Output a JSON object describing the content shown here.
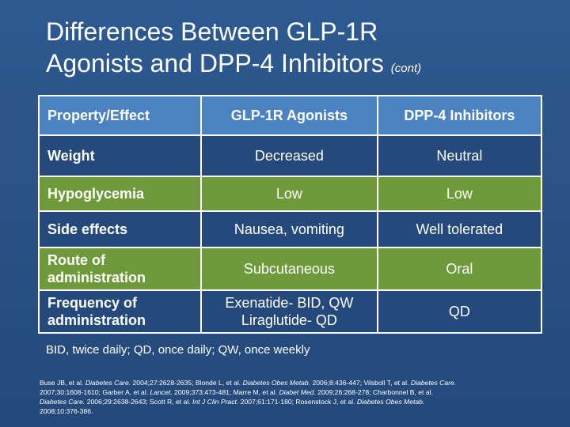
{
  "slide": {
    "title_line1": "Differences Between GLP-1R",
    "title_line2": "Agonists and DPP-4 Inhibitors",
    "title_suffix": "(cont)"
  },
  "table": {
    "headers": [
      "Property/Effect",
      "GLP-1R Agonists",
      "DPP-4 Inhibitors"
    ],
    "rows": [
      {
        "property": "Weight",
        "glp1": "Decreased",
        "dpp4": "Neutral"
      },
      {
        "property": "Hypoglycemia",
        "glp1": "Low",
        "dpp4": "Low"
      },
      {
        "property": "Side effects",
        "glp1": "Nausea, vomiting",
        "dpp4": "Well tolerated"
      },
      {
        "property_line1": "Route of",
        "property_line2": "administration",
        "glp1": "Subcutaneous",
        "dpp4": "Oral"
      },
      {
        "property_line1": "Frequency of",
        "property_line2": "administration",
        "glp1_line1": "Exenatide- BID, QW",
        "glp1_line2": "Liraglutide- QD",
        "dpp4": "QD"
      }
    ]
  },
  "footnote": "BID, twice daily; QD, once daily; QW, once weekly",
  "references": {
    "r1a": "Buse JB, et al. ",
    "r1b": "Diabetes Care.",
    "r1c": " 2004;27:2628-2635; Blonde L, et al. ",
    "r1d": "Diabetes Obes Metab.",
    "r1e": " 2006;8:436-447; Vilsboll T, et al. ",
    "r1f": "Diabetes Care.",
    "r1g": " 2007;30:1608-1610; Garber A, et al. ",
    "r1h": "Lancet.",
    "r1i": " 2009;373:473-481; Marre M, et al. ",
    "r1j": "Diabet Med.",
    "r1k": " 2009;26:268-278; Charbonnel B, et al. ",
    "r1l": "Diabetes Care.",
    "r1m": " 2006;29:2638-2643; Scott R, et al. ",
    "r1n": "Int J Clin Pract.",
    "r1o": " 2007;61:171-180; Rosenstock J, et al. ",
    "r1p": "Diabetes Obes Metab.",
    "r1q": " 2008;10:376-386."
  }
}
